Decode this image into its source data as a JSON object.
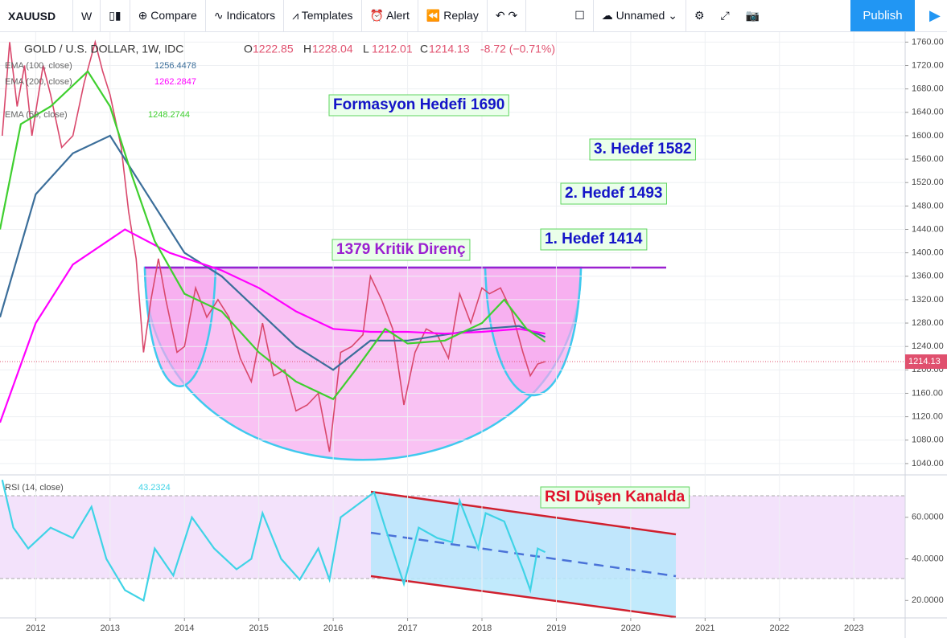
{
  "toolbar": {
    "symbol": "XAUUSD",
    "interval": "W",
    "items": [
      "Compare",
      "Indicators",
      "Templates",
      "Alert",
      "Replay"
    ],
    "layout_name": "Unnamed",
    "publish": "Publish"
  },
  "chart_data": [
    {
      "type": "line",
      "title": "GOLD / U.S. DOLLAR, 1W, IDC",
      "ohlc": [
        {
          "label": "O",
          "value": 1222.85
        },
        {
          "label": "H",
          "value": 1228.04
        },
        {
          "label": "L",
          "value": 1212.01
        },
        {
          "label": "C",
          "value": 1214.13
        }
      ],
      "change": "-8.72 (−0.71%)",
      "xlim": [
        2011.52,
        2023.69
      ],
      "xticks": [
        2012,
        2013,
        2014,
        2015,
        2016,
        2017,
        2018,
        2019,
        2020,
        2021,
        2022,
        2023
      ],
      "ylim": [
        1022,
        1777
      ],
      "yticks": [
        {
          "value": 1040,
          "label": "1040.00"
        },
        {
          "value": 1080,
          "label": "1080.00"
        },
        {
          "value": 1120,
          "label": "1120.00"
        },
        {
          "value": 1160,
          "label": "1160.00"
        },
        {
          "value": 1200,
          "label": "1200.00"
        },
        {
          "value": 1240,
          "label": "1240.00"
        },
        {
          "value": 1280,
          "label": "1280.00"
        },
        {
          "value": 1320,
          "label": "1320.00"
        },
        {
          "value": 1360,
          "label": "1360.00"
        },
        {
          "value": 1400,
          "label": "1400.00"
        },
        {
          "value": 1440,
          "label": "1440.00"
        },
        {
          "value": 1480,
          "label": "1480.00"
        },
        {
          "value": 1520,
          "label": "1520.00"
        },
        {
          "value": 1560,
          "label": "1560.00"
        },
        {
          "value": 1600,
          "label": "1600.00"
        },
        {
          "value": 1640,
          "label": "1640.00"
        },
        {
          "value": 1680,
          "label": "1680.00"
        },
        {
          "value": 1720,
          "label": "1720.00"
        },
        {
          "value": 1760,
          "label": "1760.00"
        }
      ],
      "grid": true,
      "series": [
        {
          "color": "#d9486c",
          "x": [
            2011.55,
            2011.65,
            2011.75,
            2011.85,
            2011.95,
            2012.1,
            2012.2,
            2012.35,
            2012.5,
            2012.65,
            2012.8,
            2012.9,
            2013.0,
            2013.15,
            2013.25,
            2013.35,
            2013.45,
            2013.55,
            2013.65,
            2013.75,
            2013.9,
            2014.0,
            2014.15,
            2014.3,
            2014.45,
            2014.6,
            2014.75,
            2014.9,
            2015.05,
            2015.2,
            2015.35,
            2015.5,
            2015.65,
            2015.8,
            2015.95,
            2016.1,
            2016.25,
            2016.4,
            2016.5,
            2016.65,
            2016.8,
            2016.95,
            2017.1,
            2017.25,
            2017.4,
            2017.55,
            2017.7,
            2017.85,
            2018.0,
            2018.1,
            2018.25,
            2018.4,
            2018.55,
            2018.65,
            2018.75,
            2018.85
          ],
          "values": [
            1600,
            1760,
            1650,
            1720,
            1600,
            1720,
            1670,
            1580,
            1600,
            1690,
            1760,
            1710,
            1670,
            1580,
            1470,
            1390,
            1230,
            1320,
            1390,
            1320,
            1230,
            1240,
            1340,
            1290,
            1320,
            1290,
            1220,
            1180,
            1280,
            1190,
            1200,
            1130,
            1140,
            1160,
            1060,
            1230,
            1240,
            1260,
            1360,
            1320,
            1270,
            1140,
            1230,
            1270,
            1260,
            1220,
            1330,
            1280,
            1340,
            1330,
            1340,
            1300,
            1230,
            1190,
            1210,
            1214.13
          ]
        },
        {
          "name": "EMA (100, close)",
          "legend_value": 1256.4478,
          "color": "#3b6e9a",
          "x": [
            2011.52,
            2012.0,
            2012.5,
            2013.0,
            2013.5,
            2014.0,
            2014.5,
            2015.0,
            2015.5,
            2016.0,
            2016.5,
            2017.0,
            2017.5,
            2018.0,
            2018.5,
            2018.85
          ],
          "values": [
            1290,
            1500,
            1570,
            1600,
            1500,
            1400,
            1360,
            1300,
            1240,
            1200,
            1250,
            1250,
            1260,
            1270,
            1275,
            1256
          ]
        },
        {
          "name": "EMA (200, close)",
          "legend_value": 1262.2847,
          "color": "#ff00ff",
          "x": [
            2011.52,
            2012.0,
            2012.5,
            2013.2,
            2013.8,
            2014.5,
            2015.0,
            2015.5,
            2016.0,
            2016.5,
            2017.0,
            2017.5,
            2018.0,
            2018.5,
            2018.85
          ],
          "values": [
            1110,
            1280,
            1380,
            1440,
            1400,
            1370,
            1340,
            1300,
            1270,
            1265,
            1265,
            1262,
            1265,
            1270,
            1262
          ]
        },
        {
          "name": "EMA (50, close)",
          "legend_value": 1248.2744,
          "color": "#3fcf2f",
          "x": [
            2011.52,
            2011.8,
            2012.2,
            2012.7,
            2013.0,
            2013.3,
            2013.6,
            2014.0,
            2014.5,
            2015.0,
            2015.5,
            2016.0,
            2016.3,
            2016.7,
            2017.0,
            2017.5,
            2018.0,
            2018.3,
            2018.6,
            2018.85
          ],
          "values": [
            1440,
            1620,
            1650,
            1710,
            1650,
            1530,
            1420,
            1330,
            1300,
            1230,
            1180,
            1150,
            1200,
            1270,
            1245,
            1250,
            1280,
            1320,
            1270,
            1248
          ]
        }
      ],
      "annotations": [
        {
          "text": "Formasyon Hedefi 1690",
          "color": "#1414c8"
        },
        {
          "text": "3. Hedef 1582",
          "color": "#1414c8"
        },
        {
          "text": "2. Hedef 1493",
          "color": "#1414c8"
        },
        {
          "text": "1. Hedef 1414",
          "color": "#1414c8"
        },
        {
          "text": "1379 Kritik Direnç",
          "color": "#9b20d0"
        }
      ]
    },
    {
      "type": "line",
      "title": "RSI (14, close)",
      "xlim": [
        2011.52,
        2023.69
      ],
      "ylim": [
        12,
        80
      ],
      "yticks": [
        {
          "value": 20,
          "label": "20.0000"
        },
        {
          "value": 40,
          "label": "40.0000"
        },
        {
          "value": 60,
          "label": "60.0000"
        }
      ],
      "series": [
        {
          "name": "RSI (14, close)",
          "legend_value": 43.2324,
          "color": "#3fd3e6",
          "x": [
            2011.55,
            2011.7,
            2011.9,
            2012.2,
            2012.5,
            2012.75,
            2012.95,
            2013.2,
            2013.45,
            2013.6,
            2013.85,
            2014.1,
            2014.4,
            2014.7,
            2014.9,
            2015.05,
            2015.3,
            2015.55,
            2015.8,
            2015.95,
            2016.1,
            2016.4,
            2016.55,
            2016.7,
            2016.95,
            2017.15,
            2017.4,
            2017.6,
            2017.7,
            2017.95,
            2018.05,
            2018.3,
            2018.55,
            2018.65,
            2018.75,
            2018.85
          ],
          "values": [
            78,
            55,
            45,
            55,
            50,
            65,
            40,
            25,
            20,
            45,
            32,
            60,
            45,
            35,
            40,
            62,
            40,
            30,
            45,
            30,
            60,
            68,
            72,
            55,
            28,
            55,
            50,
            48,
            68,
            45,
            62,
            58,
            35,
            25,
            45,
            43.2324
          ]
        }
      ],
      "annotations": [
        {
          "text": "RSI Düşen Kanalda",
          "color": "#e0102a"
        }
      ]
    }
  ]
}
